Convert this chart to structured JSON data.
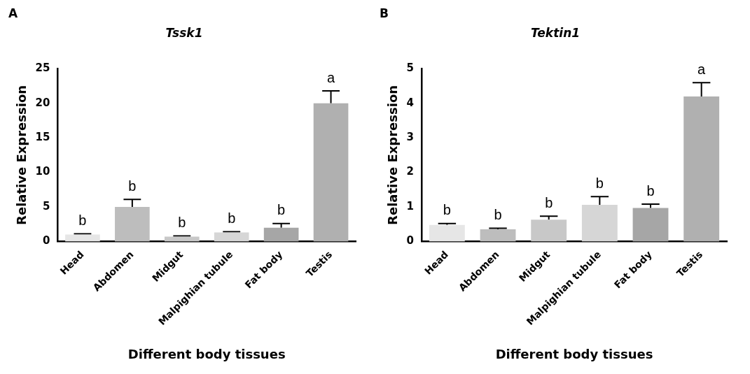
{
  "chart_data": [
    {
      "type": "bar",
      "title": "Tssk1",
      "xlabel": "Different body tissues",
      "ylabel": "Relative Expression",
      "categories": [
        "Head",
        "Abdomen",
        "Midgut",
        "Malpighian tubule",
        "Fat body",
        "Testis"
      ],
      "values": [
        1.0,
        5.0,
        0.7,
        1.3,
        2.0,
        20.0
      ],
      "errors": [
        [
          1.0,
          1.1
        ],
        [
          5.0,
          6.1
        ],
        [
          0.7,
          0.8
        ],
        [
          1.3,
          1.4
        ],
        [
          2.0,
          2.6
        ],
        [
          20.0,
          21.8
        ]
      ],
      "colors": [
        "#e6e6e6",
        "#bdbdbd",
        "#c8c8c8",
        "#d6d6d6",
        "#a6a6a6",
        "#b0b0b0"
      ],
      "ylim": [
        0,
        25
      ],
      "yticks": [
        0,
        5,
        10,
        15,
        20,
        25
      ],
      "grid": false,
      "legend": false,
      "annotations": [
        "A",
        {
          "text": "b",
          "x": "Head",
          "y": 1.1
        },
        {
          "text": "b",
          "x": "Abdomen",
          "y": 6.1
        },
        {
          "text": "b",
          "x": "Midgut",
          "y": 0.8
        },
        {
          "text": "b",
          "x": "Malpighian tubule",
          "y": 1.4
        },
        {
          "text": "b",
          "x": "Fat body",
          "y": 2.6
        },
        {
          "text": "a",
          "x": "Testis",
          "y": 21.8
        }
      ]
    },
    {
      "type": "bar",
      "title": "Tektin1",
      "xlabel": "Different body tissues",
      "ylabel": "Relative Expression",
      "categories": [
        "Head",
        "Abdomen",
        "Midgut",
        "Malpighian tubule",
        "Fat body",
        "Testis"
      ],
      "values": [
        0.48,
        0.35,
        0.63,
        1.06,
        0.97,
        4.2
      ],
      "errors": [
        [
          0.48,
          0.52
        ],
        [
          0.35,
          0.38
        ],
        [
          0.63,
          0.73
        ],
        [
          1.06,
          1.3
        ],
        [
          0.97,
          1.08
        ],
        [
          4.2,
          4.6
        ]
      ],
      "colors": [
        "#e6e6e6",
        "#bdbdbd",
        "#c8c8c8",
        "#d6d6d6",
        "#a6a6a6",
        "#b0b0b0"
      ],
      "ylim": [
        0,
        5
      ],
      "yticks": [
        0,
        1,
        2,
        3,
        4,
        5
      ],
      "grid": false,
      "legend": false,
      "annotations": [
        "B",
        {
          "text": "b",
          "x": "Head",
          "y": 0.52
        },
        {
          "text": "b",
          "x": "Abdomen",
          "y": 0.38
        },
        {
          "text": "b",
          "x": "Midgut",
          "y": 0.73
        },
        {
          "text": "b",
          "x": "Malpighian tubule",
          "y": 1.3
        },
        {
          "text": "b",
          "x": "Fat body",
          "y": 1.08
        },
        {
          "text": "a",
          "x": "Testis",
          "y": 4.6
        }
      ]
    }
  ]
}
